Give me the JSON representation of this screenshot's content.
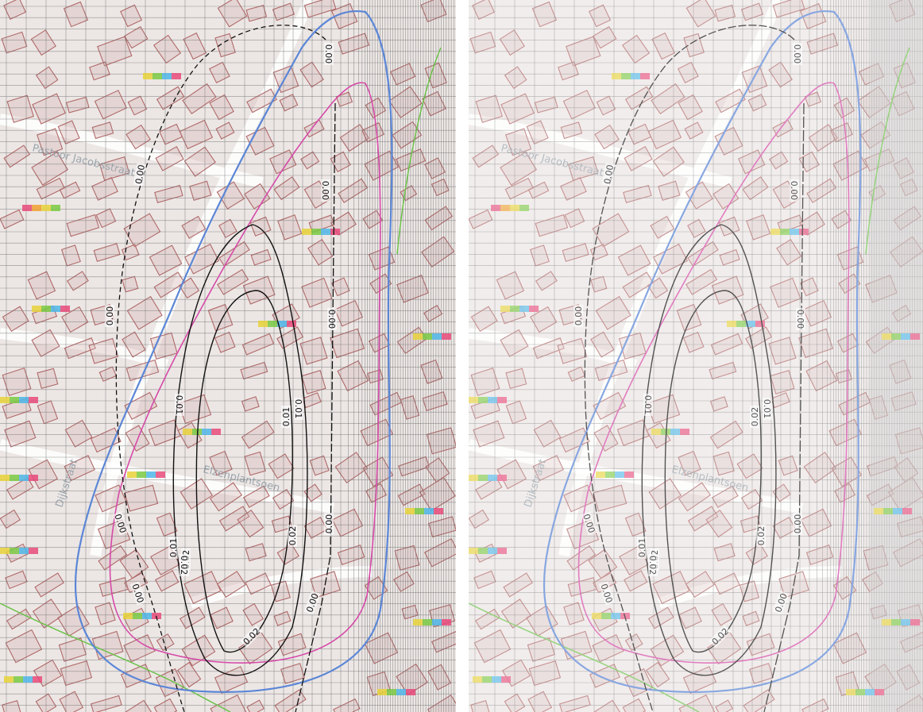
{
  "colors": {
    "background": "#ece7e5",
    "building_outline": "#b06a6a",
    "grid": "#6f6f6f",
    "contour": "#111111",
    "zone_blue": "#5b86d6",
    "zone_magenta": "#d64aa8",
    "zone_green": "#6cc24a",
    "street": "#ffffff"
  },
  "streets": {
    "pastoor": "Pastoor Jacobsstraat",
    "elzenplantsoen": "Elzenplantsoen",
    "left_edge": "Dijkstraat"
  },
  "panels": [
    {
      "labels": {
        "outer_top": "0.00",
        "outer_left_upper": "0.00",
        "outer_left_mid": "0.00",
        "outer_left_lower": "0.00",
        "outer_left_bottom": "0.00",
        "right_top": "0.00",
        "right_mid": "0.00",
        "right_lower": "0.00",
        "right_bottom": "0.00",
        "mid_left": "0.01",
        "mid_right": "0.01",
        "mid_bottom": "0.02",
        "inner_left": "0.02",
        "inner_right": "0.02",
        "inner_mid": "0.01",
        "inner_bottom": "0.02",
        "extra_left": "0.01"
      }
    },
    {
      "labels": {
        "outer_top": "0.00",
        "outer_left_upper": "0.00",
        "outer_left_mid": "0.00",
        "outer_left_lower": "0.00",
        "outer_left_bottom": "0.00",
        "right_top": "0.00",
        "right_mid": "0.00",
        "right_lower": "0.00",
        "right_bottom": "0.00",
        "mid_left": "0.01",
        "mid_right": "0.01",
        "mid_bottom": "0.02",
        "inner_left": "0.02",
        "inner_right": "0.02",
        "inner_mid": "0.02",
        "inner_bottom": "0.02",
        "extra_left": "0.01"
      }
    }
  ]
}
